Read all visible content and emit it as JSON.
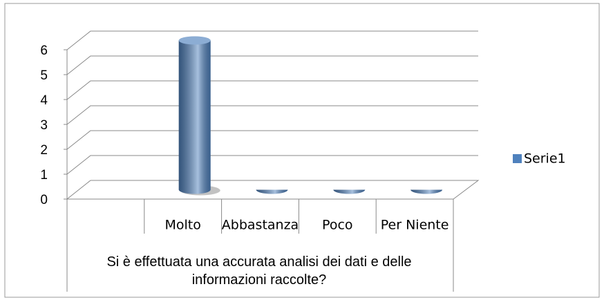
{
  "chart_data": {
    "type": "bar3d",
    "categories": [
      null,
      "Molto",
      "Abbastanza",
      "Poco",
      "Per Niente"
    ],
    "x_group_label": "Si è effettuata una accurata analisi dei dati e delle informazioni raccolte?",
    "series": [
      {
        "name": "Serie1",
        "color": "#4f81bd",
        "values": [
          null,
          6,
          0,
          0,
          0
        ]
      }
    ],
    "ylim": [
      0,
      6
    ],
    "yticks": [
      0,
      1,
      2,
      3,
      4,
      5,
      6
    ],
    "grid": true,
    "legend": "right"
  }
}
